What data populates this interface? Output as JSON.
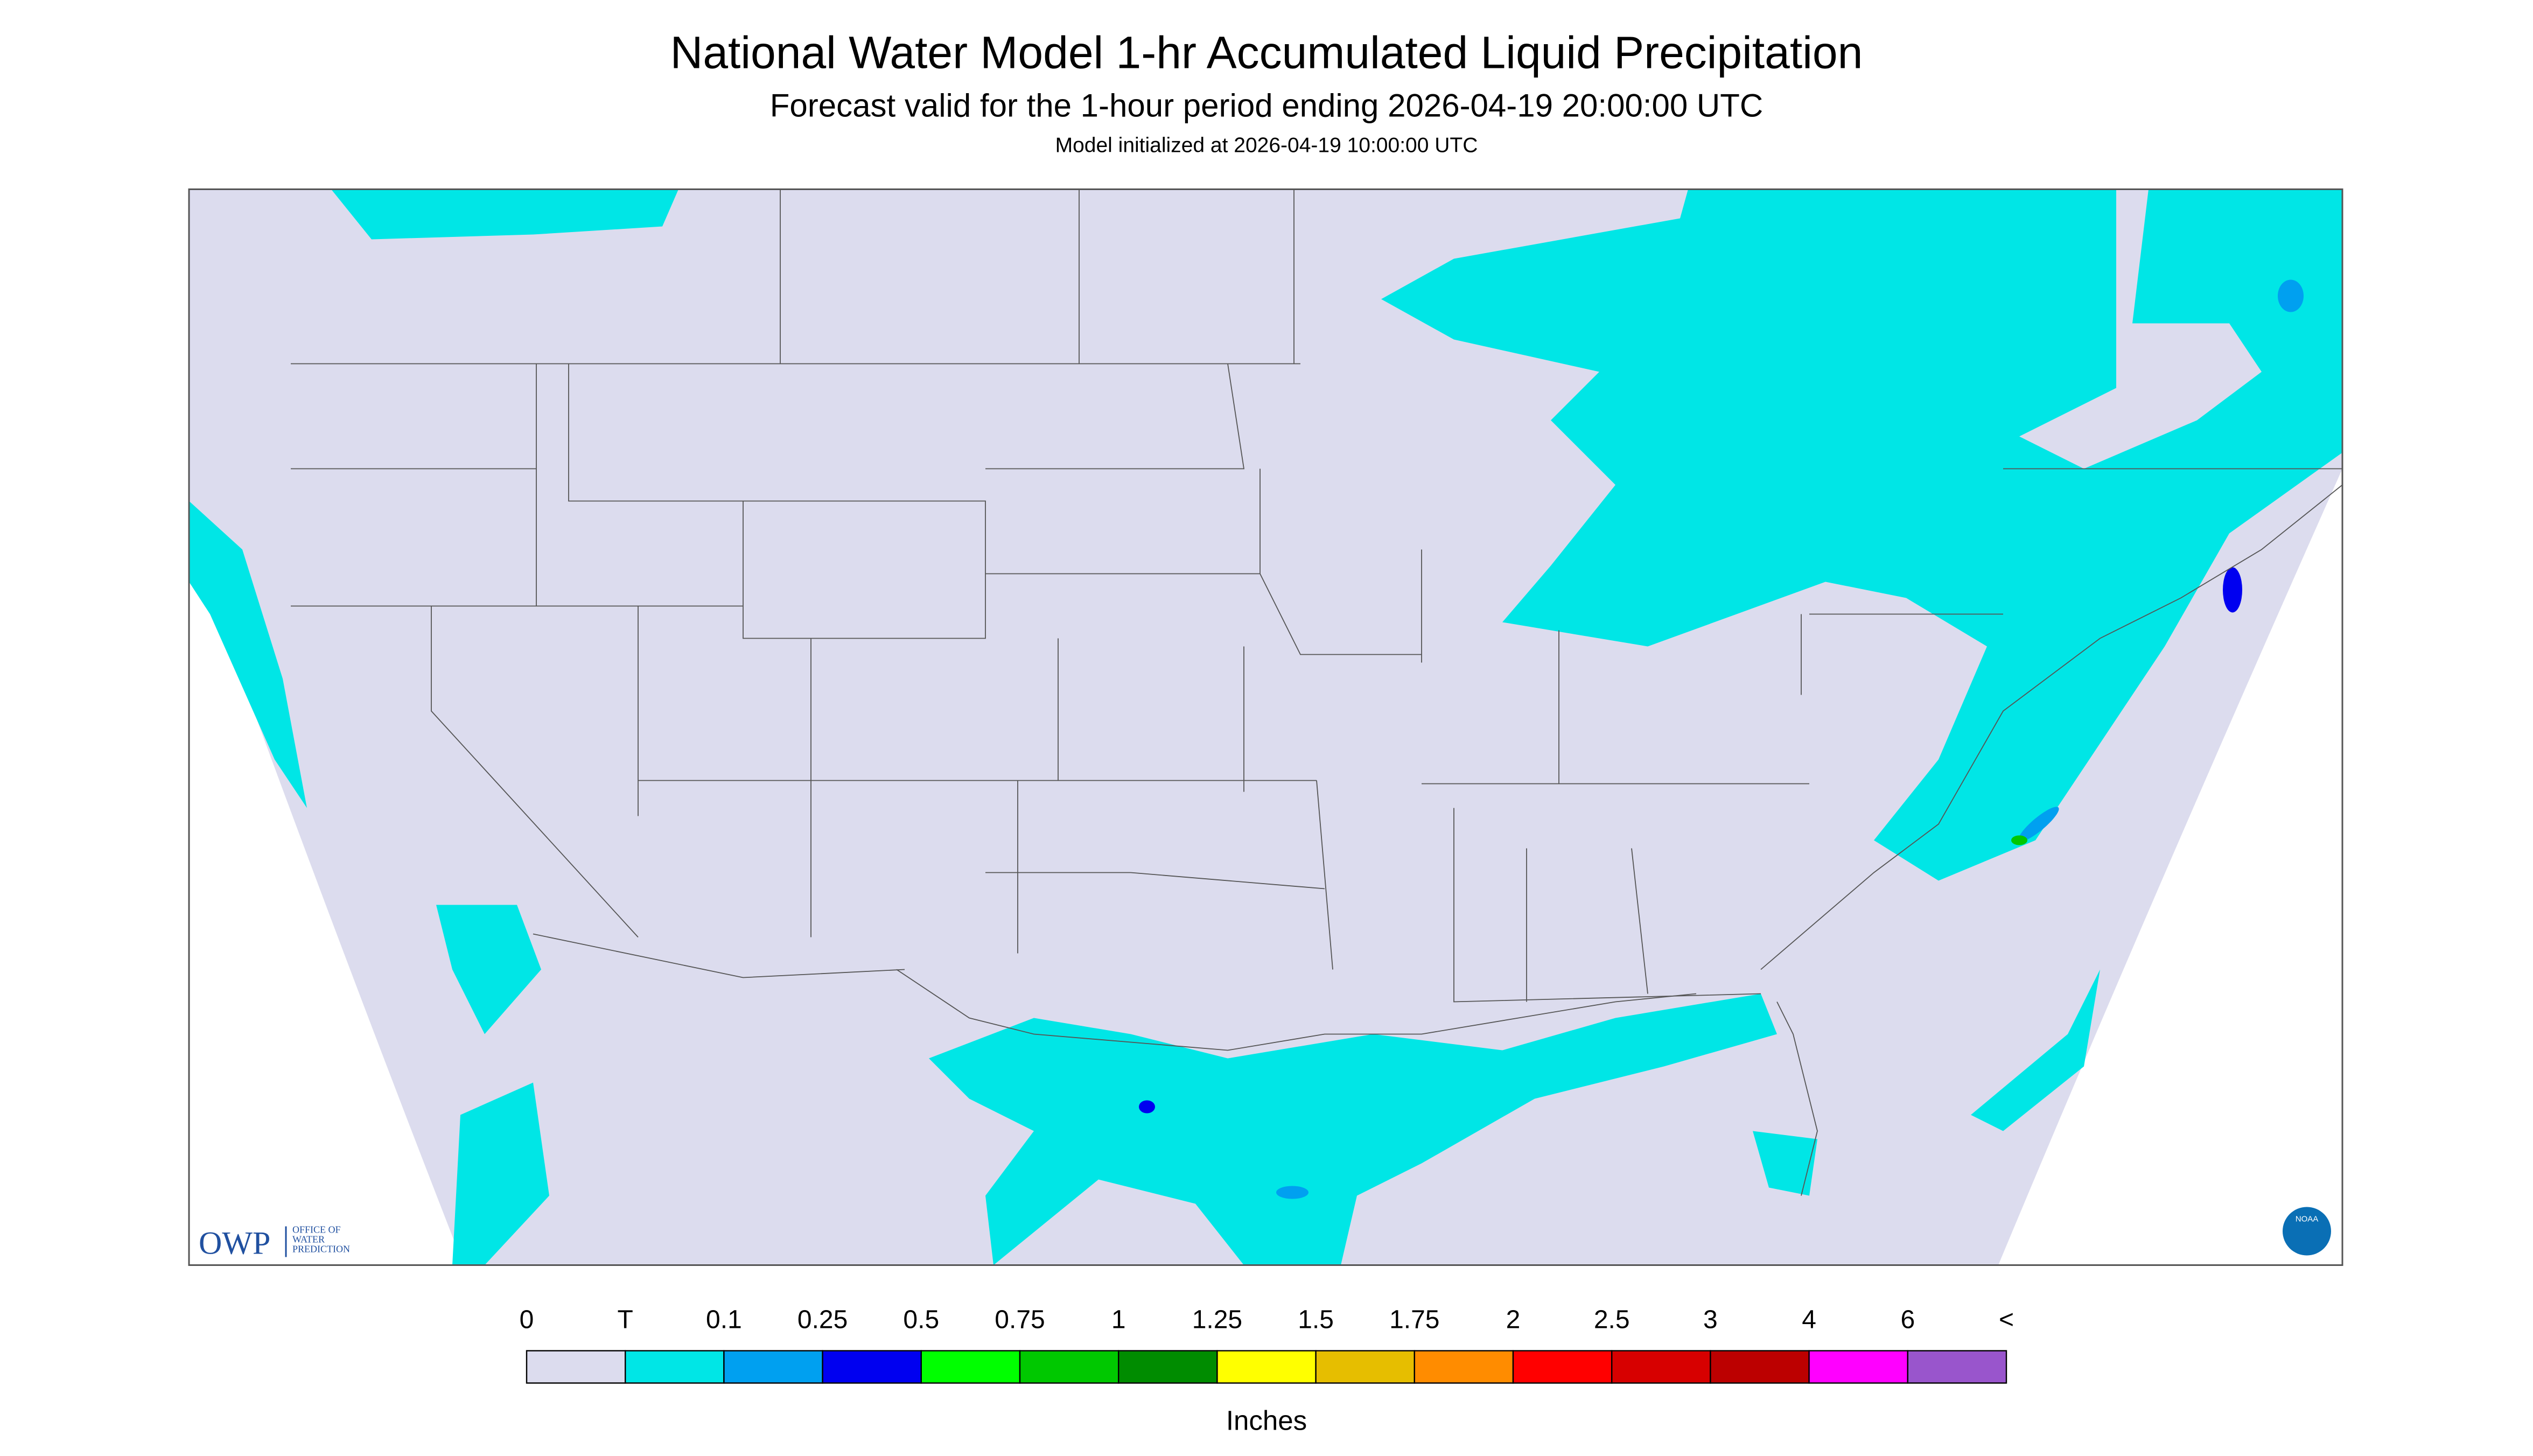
{
  "header": {
    "title": "National Water Model 1-hr Accumulated Liquid Precipitation",
    "subtitle": "Forecast valid for the 1-hour period ending 2026-04-19 20:00:00 UTC",
    "init": "Model initialized at 2026-04-19 10:00:00 UTC"
  },
  "logos": {
    "owp": "OWP",
    "owp_lines": [
      "OFFICE OF",
      "WATER",
      "PREDICTION"
    ],
    "noaa": "NOAA"
  },
  "legend": {
    "labels": [
      "0",
      "T",
      "0.1",
      "0.25",
      "0.5",
      "0.75",
      "1",
      "1.25",
      "1.5",
      "1.75",
      "2",
      "2.5",
      "3",
      "4",
      "6",
      "<"
    ],
    "colors": [
      "#dcdcee",
      "#00e6e6",
      "#00a0f0",
      "#0000f0",
      "#00ff00",
      "#00c800",
      "#008c00",
      "#ffff00",
      "#e6be00",
      "#ff8c00",
      "#ff0000",
      "#d70000",
      "#bc0000",
      "#ff00ff",
      "#9955cc"
    ],
    "unit": "Inches"
  }
}
